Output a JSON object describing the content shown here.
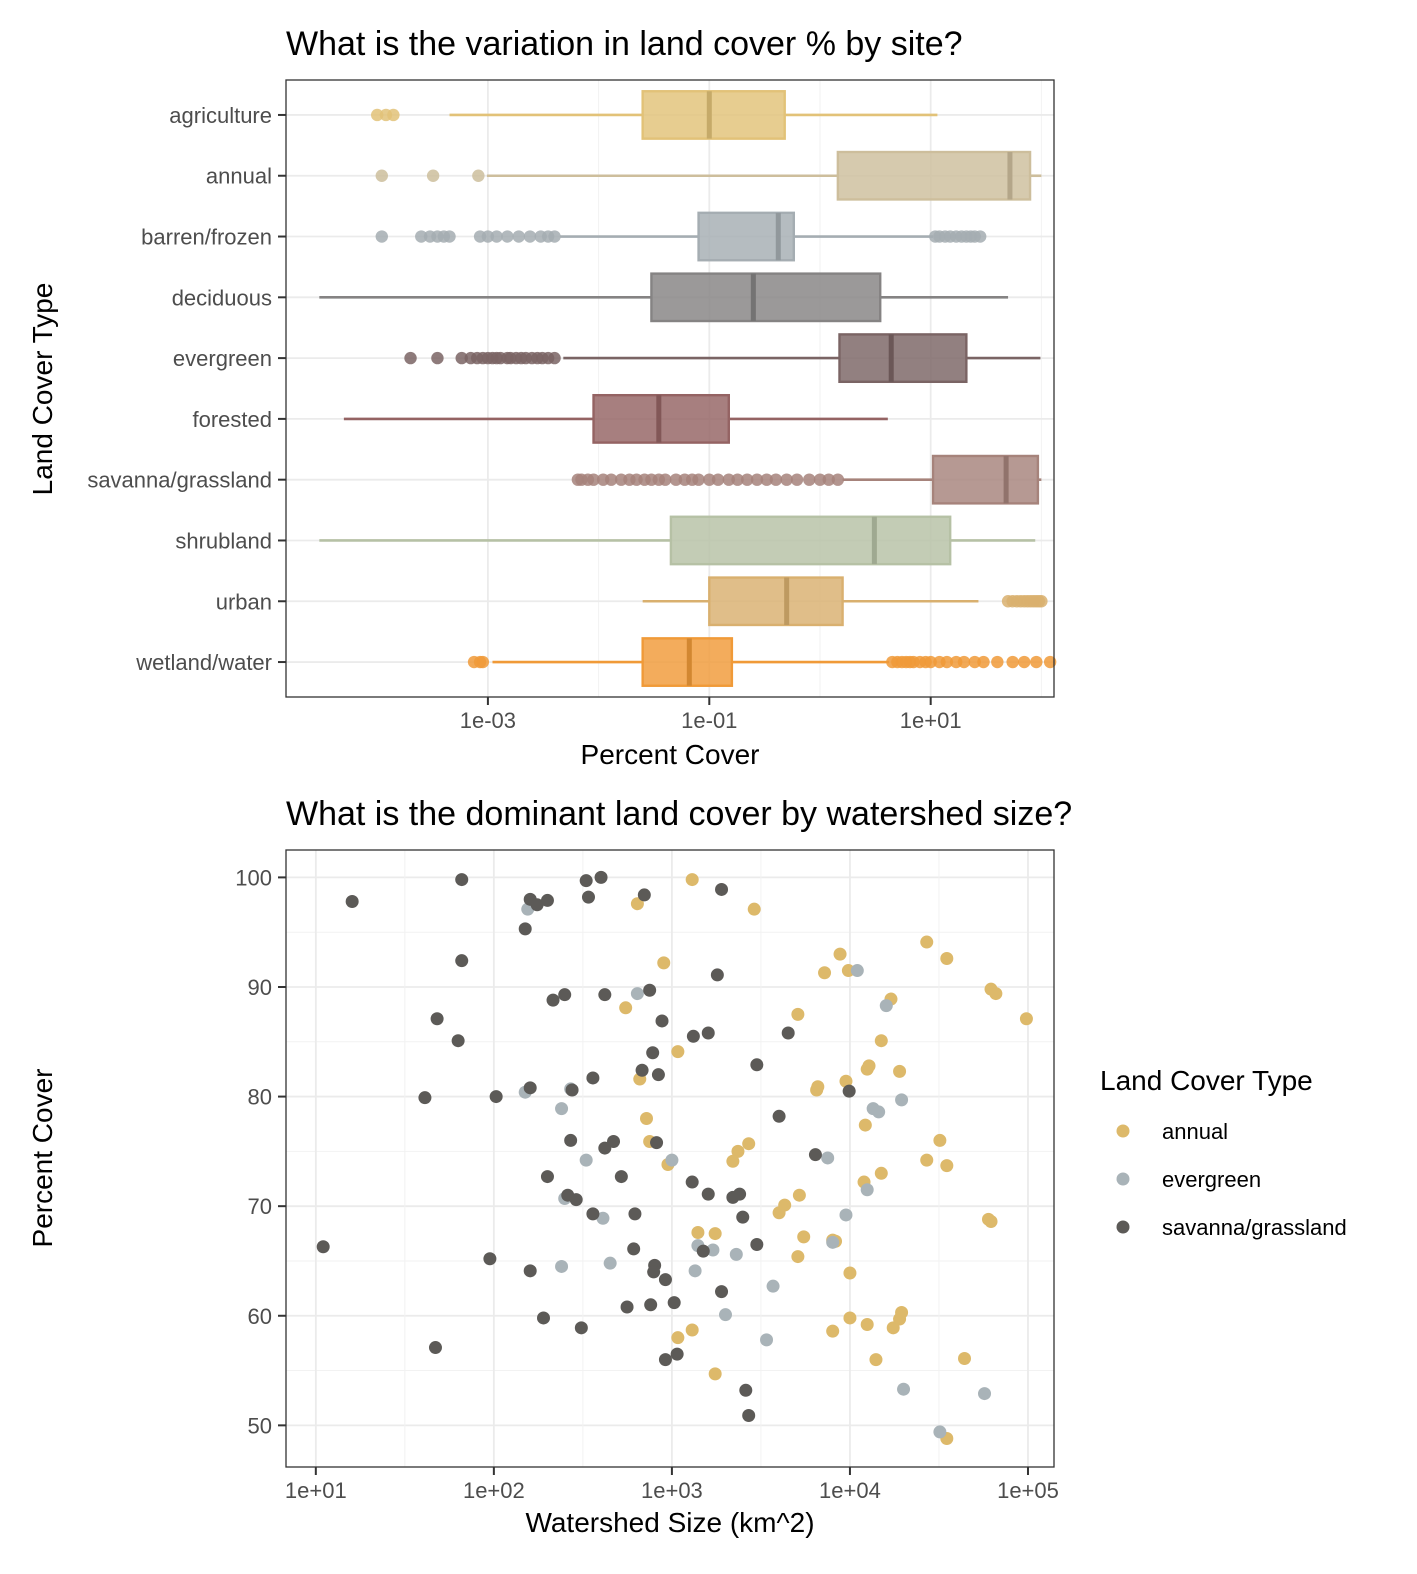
{
  "chart_data": [
    {
      "type": "boxplot",
      "title": "What is the variation in land cover % by site?",
      "xlabel": "Percent Cover",
      "ylabel": "Land Cover Type",
      "x_scale": "log10",
      "xlim": [
        1.5e-05,
        130
      ],
      "x_ticks": [
        {
          "value": 0.001,
          "label": "1e-03"
        },
        {
          "value": 0.1,
          "label": "1e-01"
        },
        {
          "value": 10,
          "label": "1e+01"
        }
      ],
      "grid": true,
      "categories": [
        {
          "name": "wetland/water",
          "color": "#F09A38",
          "q1": 0.025,
          "median": 0.066,
          "q3": 0.16,
          "whisker_low": 0.0011,
          "whisker_high": 4.2,
          "outliers": [
            0.00075,
            0.00085,
            0.0009,
            4.5,
            5,
            5.5,
            6,
            6.5,
            7,
            8,
            9,
            10,
            12,
            14,
            17,
            20,
            25,
            30,
            40,
            55,
            70,
            90,
            120
          ]
        },
        {
          "name": "urban",
          "color": "#D9B06F",
          "q1": 0.1,
          "median": 0.5,
          "q3": 1.6,
          "whisker_low": 0.025,
          "whisker_high": 27,
          "outliers": [
            50,
            55,
            60,
            65,
            70,
            75,
            80,
            85,
            90,
            95,
            100
          ]
        },
        {
          "name": "shrubland",
          "color": "#B6C1A5",
          "q1": 0.045,
          "median": 3.1,
          "q3": 15,
          "whisker_low": 3e-05,
          "whisker_high": 88,
          "outliers": []
        },
        {
          "name": "savanna/grassland",
          "color": "#A6837B",
          "q1": 10.5,
          "median": 48,
          "q3": 93,
          "whisker_low": 1.6,
          "whisker_high": 100,
          "outliers": [
            0.0065,
            0.007,
            0.008,
            0.009,
            0.011,
            0.013,
            0.016,
            0.019,
            0.022,
            0.026,
            0.03,
            0.035,
            0.04,
            0.05,
            0.06,
            0.07,
            0.08,
            0.1,
            0.12,
            0.15,
            0.18,
            0.22,
            0.27,
            0.33,
            0.4,
            0.5,
            0.62,
            0.8,
            1.0,
            1.2,
            1.45
          ]
        },
        {
          "name": "forested",
          "color": "#946363",
          "q1": 0.009,
          "median": 0.035,
          "q3": 0.15,
          "whisker_low": 5e-05,
          "whisker_high": 4.1,
          "outliers": []
        },
        {
          "name": "evergreen",
          "color": "#7A6464",
          "q1": 1.5,
          "median": 4.4,
          "q3": 21,
          "whisker_low": 0.0048,
          "whisker_high": 98,
          "outliers": [
            0.0002,
            0.00035,
            0.00058,
            0.0007,
            0.0008,
            0.0009,
            0.001,
            0.0011,
            0.0012,
            0.0013,
            0.0015,
            0.0016,
            0.0018,
            0.002,
            0.0022,
            0.0025,
            0.0028,
            0.0031,
            0.0035,
            0.004
          ]
        },
        {
          "name": "deciduous",
          "color": "#858383",
          "q1": 0.03,
          "median": 0.25,
          "q3": 3.5,
          "whisker_low": 3e-05,
          "whisker_high": 50,
          "outliers": []
        },
        {
          "name": "barren/frozen",
          "color": "#A5ADB2",
          "q1": 0.08,
          "median": 0.42,
          "q3": 0.58,
          "whisker_low": 0.0045,
          "whisker_high": 10.5,
          "outliers": [
            0.00011,
            0.00025,
            0.0003,
            0.00035,
            0.0004,
            0.00045,
            0.00085,
            0.001,
            0.0012,
            0.0015,
            0.0019,
            0.0024,
            0.003,
            0.0035,
            0.004,
            11,
            12,
            13.5,
            15,
            17,
            19,
            21,
            23,
            25,
            28
          ]
        },
        {
          "name": "annual",
          "color": "#CDBE9C",
          "q1": 1.45,
          "median": 52,
          "q3": 79,
          "whisker_low": 0.00098,
          "whisker_high": 100,
          "outliers": [
            0.00011,
            0.00032,
            0.00082
          ]
        },
        {
          "name": "agriculture",
          "color": "#E2C278",
          "q1": 0.025,
          "median": 0.1,
          "q3": 0.48,
          "whisker_low": 0.00045,
          "whisker_high": 11.5,
          "outliers": [
            0.0001,
            0.00012,
            0.00014
          ]
        }
      ]
    },
    {
      "type": "scatter",
      "title": "What is the dominant land cover by watershed size?",
      "xlabel": "Watershed Size (km^2)",
      "ylabel": "Percent Cover",
      "x_scale": "log10",
      "xlim": [
        6.8,
        140000
      ],
      "ylim": [
        46.2,
        102.5
      ],
      "x_ticks": [
        {
          "value": 10,
          "label": "1e+01"
        },
        {
          "value": 100,
          "label": "1e+02"
        },
        {
          "value": 1000,
          "label": "1e+03"
        },
        {
          "value": 10000,
          "label": "1e+04"
        },
        {
          "value": 100000,
          "label": "1e+05"
        }
      ],
      "y_ticks": [
        {
          "value": 50,
          "label": "50"
        },
        {
          "value": 60,
          "label": "60"
        },
        {
          "value": 70,
          "label": "70"
        },
        {
          "value": 80,
          "label": "80"
        },
        {
          "value": 90,
          "label": "90"
        },
        {
          "value": 100,
          "label": "100"
        }
      ],
      "grid": true,
      "legend_title": "Land Cover Type",
      "legend_position": "right",
      "series": [
        {
          "name": "annual",
          "color": "#DDB96A",
          "points": [
            [
              1300,
              99.8
            ],
            [
              640,
              97.6
            ],
            [
              2900,
              97.1
            ],
            [
              900,
              92.2
            ],
            [
              8800,
              93
            ],
            [
              7200,
              91.3
            ],
            [
              9800,
              91.5
            ],
            [
              27000,
              94.1
            ],
            [
              35000,
              92.6
            ],
            [
              62000,
              89.8
            ],
            [
              66000,
              89.4
            ],
            [
              98000,
              87.1
            ],
            [
              17000,
              88.9
            ],
            [
              550,
              88.1
            ],
            [
              5100,
              87.5
            ],
            [
              1080,
              84.1
            ],
            [
              15000,
              85.1
            ],
            [
              12500,
              82.5
            ],
            [
              12800,
              82.8
            ],
            [
              19000,
              82.3
            ],
            [
              9500,
              81.4
            ],
            [
              6500,
              80.6
            ],
            [
              6600,
              80.9
            ],
            [
              660,
              81.6
            ],
            [
              720,
              78
            ],
            [
              12200,
              77.4
            ],
            [
              750,
              75.9
            ],
            [
              2700,
              75.7
            ],
            [
              2350,
              75
            ],
            [
              2200,
              74.1
            ],
            [
              950,
              73.8
            ],
            [
              27000,
              74.2
            ],
            [
              35000,
              73.7
            ],
            [
              32000,
              76
            ],
            [
              15000,
              73
            ],
            [
              12000,
              72.2
            ],
            [
              5200,
              71
            ],
            [
              4300,
              70.1
            ],
            [
              4000,
              69.4
            ],
            [
              1400,
              67.6
            ],
            [
              1750,
              67.5
            ],
            [
              5500,
              67.2
            ],
            [
              8000,
              66.9
            ],
            [
              8300,
              66.8
            ],
            [
              5100,
              65.4
            ],
            [
              10000,
              63.9
            ],
            [
              60000,
              68.8
            ],
            [
              62000,
              68.6
            ],
            [
              19500,
              60.3
            ],
            [
              19000,
              59.7
            ],
            [
              10000,
              59.8
            ],
            [
              12500,
              59.2
            ],
            [
              17500,
              58.9
            ],
            [
              8000,
              58.6
            ],
            [
              1300,
              58.7
            ],
            [
              1080,
              58
            ],
            [
              14000,
              56
            ],
            [
              44000,
              56.1
            ],
            [
              1750,
              54.7
            ],
            [
              35000,
              48.8
            ]
          ]
        },
        {
          "name": "evergreen",
          "color": "#A9B3B8",
          "points": [
            [
              155,
              97.1
            ],
            [
              640,
              89.4
            ],
            [
              11000,
              91.5
            ],
            [
              16000,
              88.3
            ],
            [
              270,
              80.7
            ],
            [
              150,
              80.4
            ],
            [
              240,
              78.9
            ],
            [
              13500,
              78.9
            ],
            [
              14500,
              78.6
            ],
            [
              19500,
              79.7
            ],
            [
              330,
              74.2
            ],
            [
              1000,
              74.2
            ],
            [
              7500,
              74.4
            ],
            [
              250,
              70.7
            ],
            [
              410,
              68.9
            ],
            [
              9500,
              69.2
            ],
            [
              1400,
              66.4
            ],
            [
              1700,
              66
            ],
            [
              2300,
              65.6
            ],
            [
              8000,
              66.7
            ],
            [
              12500,
              71.5
            ],
            [
              450,
              64.8
            ],
            [
              240,
              64.5
            ],
            [
              1350,
              64.1
            ],
            [
              3700,
              62.7
            ],
            [
              2000,
              60.1
            ],
            [
              3400,
              57.8
            ],
            [
              20000,
              53.3
            ],
            [
              57000,
              52.9
            ],
            [
              32000,
              49.4
            ]
          ]
        },
        {
          "name": "savanna/grassland",
          "color": "#5C5A57",
          "points": [
            [
              16,
              97.8
            ],
            [
              66,
              99.8
            ],
            [
              330,
              99.7
            ],
            [
              400,
              100
            ],
            [
              340,
              98.2
            ],
            [
              160,
              98
            ],
            [
              175,
              97.5
            ],
            [
              200,
              97.9
            ],
            [
              700,
              98.4
            ],
            [
              1900,
              98.9
            ],
            [
              150,
              95.3
            ],
            [
              66,
              92.4
            ],
            [
              1800,
              91.1
            ],
            [
              750,
              89.7
            ],
            [
              420,
              89.3
            ],
            [
              250,
              89.3
            ],
            [
              215,
              88.8
            ],
            [
              880,
              86.9
            ],
            [
              1320,
              85.5
            ],
            [
              1600,
              85.8
            ],
            [
              4500,
              85.8
            ],
            [
              48,
              87.1
            ],
            [
              63,
              85.1
            ],
            [
              780,
              84
            ],
            [
              3000,
              82.9
            ],
            [
              680,
              82.4
            ],
            [
              840,
              82
            ],
            [
              360,
              81.7
            ],
            [
              275,
              80.6
            ],
            [
              160,
              80.8
            ],
            [
              103,
              80
            ],
            [
              41,
              79.9
            ],
            [
              9900,
              80.5
            ],
            [
              4000,
              78.2
            ],
            [
              270,
              76
            ],
            [
              470,
              75.9
            ],
            [
              420,
              75.3
            ],
            [
              820,
              75.8
            ],
            [
              6400,
              74.7
            ],
            [
              200,
              72.7
            ],
            [
              520,
              72.7
            ],
            [
              1300,
              72.2
            ],
            [
              1600,
              71.1
            ],
            [
              2400,
              71.1
            ],
            [
              2200,
              70.8
            ],
            [
              260,
              71
            ],
            [
              290,
              70.6
            ],
            [
              360,
              69.3
            ],
            [
              620,
              69.3
            ],
            [
              2500,
              69
            ],
            [
              3000,
              66.5
            ],
            [
              1500,
              65.9
            ],
            [
              610,
              66.1
            ],
            [
              11,
              66.3
            ],
            [
              95,
              65.2
            ],
            [
              800,
              64.6
            ],
            [
              790,
              64
            ],
            [
              160,
              64.1
            ],
            [
              920,
              63.3
            ],
            [
              1900,
              62.2
            ],
            [
              560,
              60.8
            ],
            [
              760,
              61
            ],
            [
              1030,
              61.2
            ],
            [
              190,
              59.8
            ],
            [
              310,
              58.9
            ],
            [
              47,
              57.1
            ],
            [
              920,
              56
            ],
            [
              1070,
              56.5
            ],
            [
              2600,
              53.2
            ],
            [
              2700,
              50.9
            ]
          ]
        }
      ]
    }
  ]
}
